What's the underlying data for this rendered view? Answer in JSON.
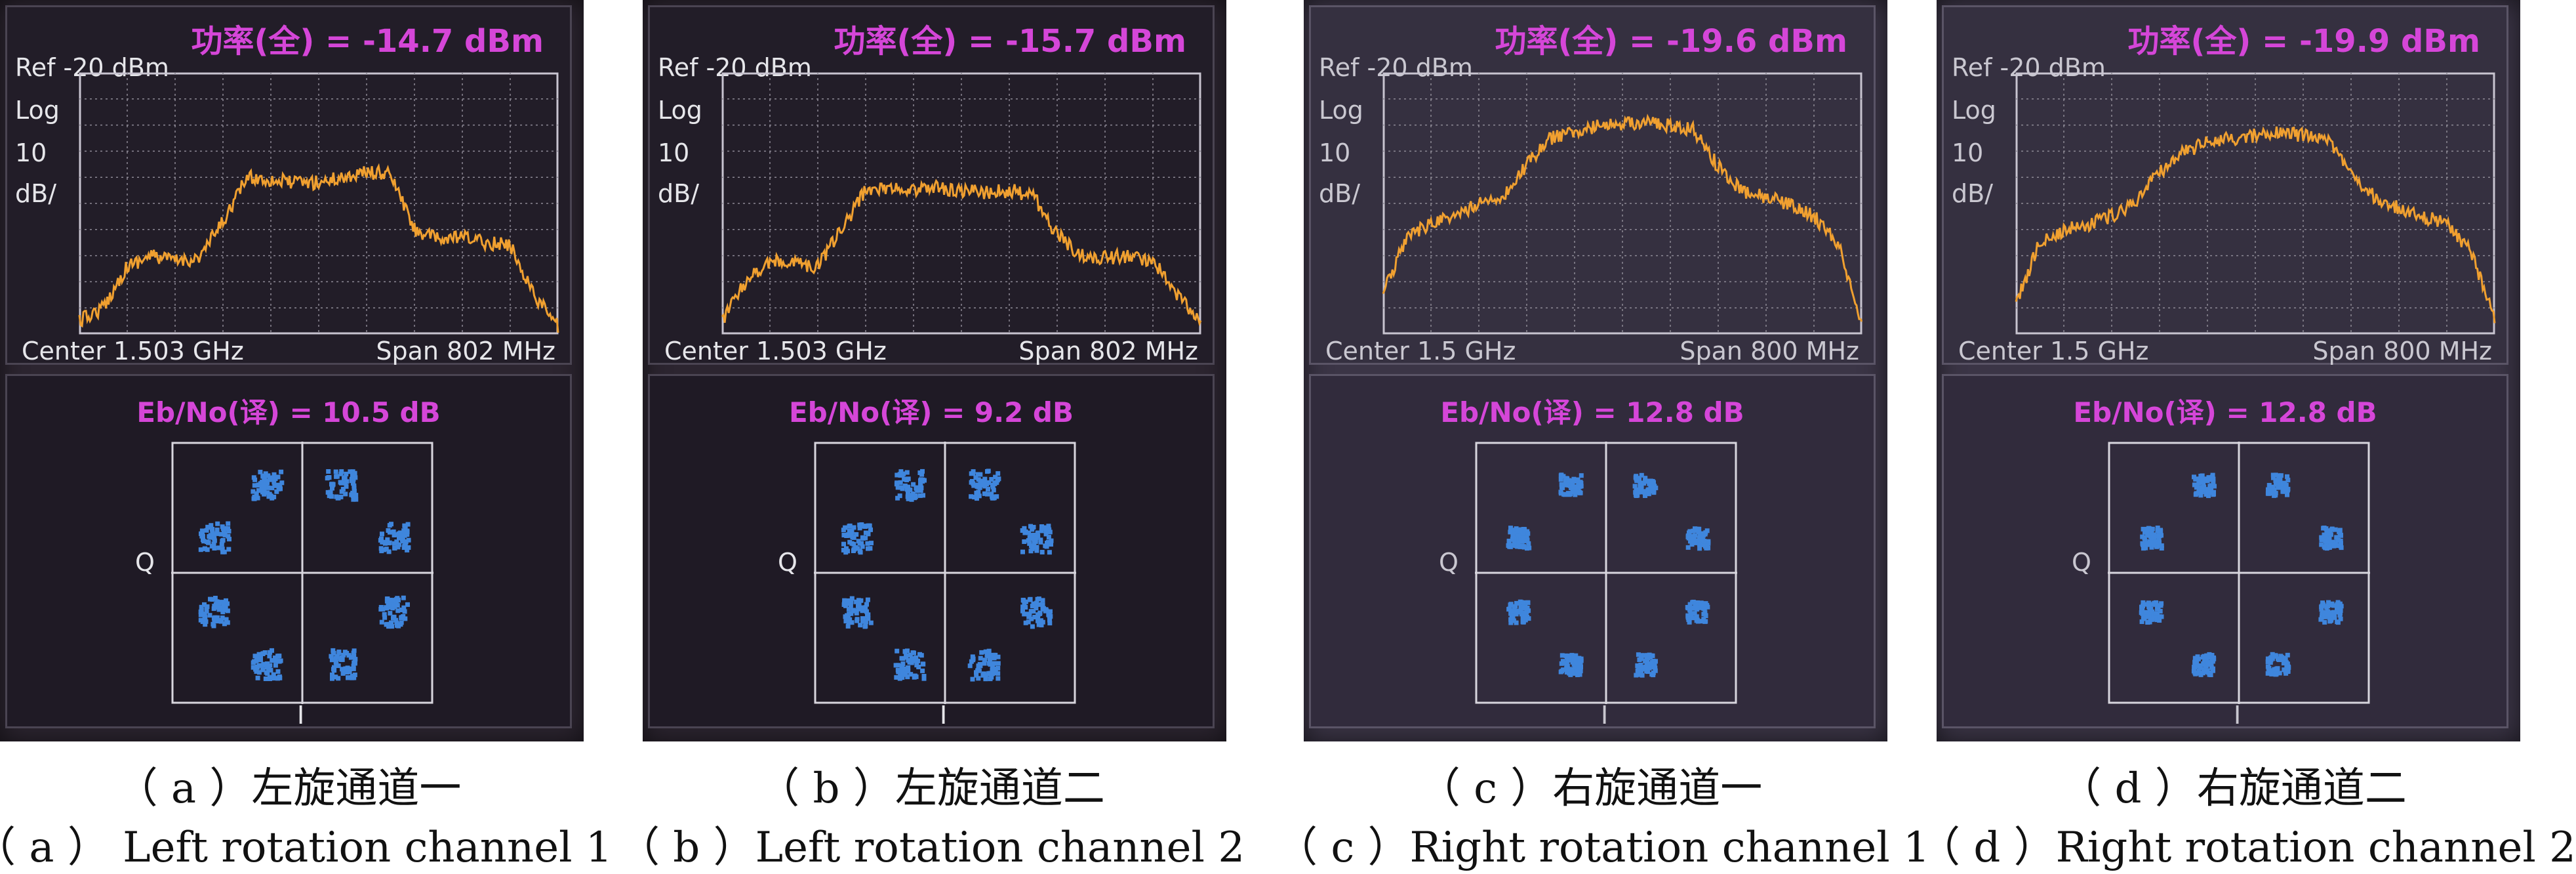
{
  "panels": [
    {
      "power": "功率(全) = -14.7 dBm",
      "ref": "Ref  -20 dBm",
      "scale": [
        "Log",
        "10",
        "dB/"
      ],
      "center": "Center 1.503 GHz",
      "span": "Span 802 MHz",
      "ebno": "Eb/No(译) = 10.5 dB",
      "q": "Q",
      "i": "I",
      "caption_cn": "（ a ）左旋通道一",
      "caption_en": "（ a ） Left rotation channel 1",
      "spectrum_profile": [
        0.95,
        0.9,
        0.74,
        0.7,
        0.72,
        0.71,
        0.57,
        0.4,
        0.41,
        0.42,
        0.42,
        0.4,
        0.38,
        0.39,
        0.6,
        0.64,
        0.63,
        0.65,
        0.66,
        0.85,
        0.97
      ],
      "light": false
    },
    {
      "power": "功率(全) = -15.7 dBm",
      "ref": "Ref  -20 dBm",
      "scale": [
        "Log",
        "10",
        "dB/"
      ],
      "center": "Center 1.503 GHz",
      "span": "Span 802 MHz",
      "ebno": "Eb/No(译) = 9.2 dB",
      "q": "Q",
      "i": "I",
      "caption_cn": "（ b ）左旋通道二",
      "caption_en": "（ b ）Left rotation channel 2",
      "spectrum_profile": [
        0.95,
        0.8,
        0.72,
        0.73,
        0.74,
        0.6,
        0.45,
        0.44,
        0.45,
        0.44,
        0.45,
        0.46,
        0.45,
        0.47,
        0.62,
        0.7,
        0.71,
        0.7,
        0.72,
        0.85,
        0.95
      ],
      "light": false
    },
    {
      "power": "功率(全) = -19.6 dBm",
      "ref": "Ref  -20 dBm",
      "scale": [
        "Log",
        "10",
        "dB/"
      ],
      "center": "Center 1.5 GHz",
      "span": "Span 800 MHz",
      "ebno": "Eb/No(译) = 12.8 dB",
      "q": "Q",
      "i": "I",
      "caption_cn": "（ c ）右旋通道一",
      "caption_en": "（ c ）Right rotation channel 1",
      "spectrum_profile": [
        0.85,
        0.62,
        0.58,
        0.55,
        0.5,
        0.47,
        0.35,
        0.25,
        0.23,
        0.2,
        0.2,
        0.19,
        0.2,
        0.22,
        0.36,
        0.45,
        0.48,
        0.5,
        0.55,
        0.65,
        0.95
      ],
      "light": true
    },
    {
      "power": "功率(全) = -19.9 dBm",
      "ref": "Ref  -20 dBm",
      "scale": [
        "Log",
        "10",
        "dB/"
      ],
      "center": "Center 1.5 GHz",
      "span": "Span 800 MHz",
      "ebno": "Eb/No(译) = 12.8 dB",
      "q": "Q",
      "i": "I",
      "caption_cn": "（ d ）右旋通道二",
      "caption_en": "（ d ）Right rotation channel 2",
      "spectrum_profile": [
        0.88,
        0.65,
        0.6,
        0.58,
        0.55,
        0.5,
        0.38,
        0.3,
        0.27,
        0.25,
        0.24,
        0.23,
        0.24,
        0.26,
        0.38,
        0.48,
        0.52,
        0.55,
        0.58,
        0.68,
        0.95
      ],
      "light": true
    }
  ],
  "colors": {
    "trace": "#f0a030",
    "points": "#3f86dd",
    "magenta": "#d546d8",
    "grid": "#8e8a96"
  }
}
